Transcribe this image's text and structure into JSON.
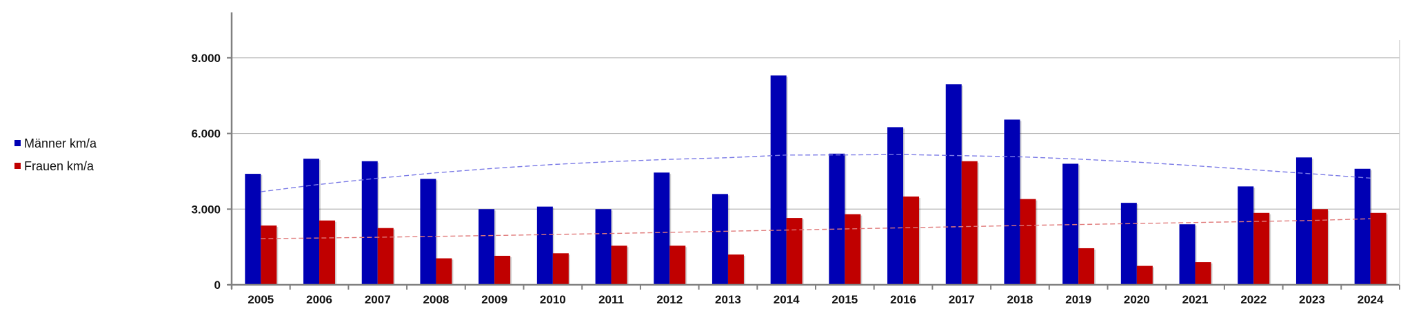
{
  "chart_data": {
    "type": "bar",
    "categories": [
      "2005",
      "2006",
      "2007",
      "2008",
      "2009",
      "2010",
      "2011",
      "2012",
      "2013",
      "2014",
      "2015",
      "2016",
      "2017",
      "2018",
      "2019",
      "2020",
      "2021",
      "2022",
      "2023",
      "2024"
    ],
    "series": [
      {
        "name": "Männer km/a",
        "color": "#0000b4",
        "values": [
          4400,
          5000,
          4900,
          4200,
          3000,
          3100,
          3000,
          4450,
          3600,
          8300,
          5200,
          6250,
          7950,
          6550,
          4800,
          3250,
          2400,
          3900,
          5050,
          4600
        ]
      },
      {
        "name": "Frauen km/a",
        "color": "#c00000",
        "values": [
          2350,
          2550,
          2250,
          1050,
          1150,
          1250,
          1550,
          1550,
          1200,
          2650,
          2800,
          3500,
          4900,
          3400,
          1450,
          750,
          900,
          2850,
          3000,
          2850
        ]
      }
    ],
    "trendlines": [
      {
        "series": "Männer km/a",
        "color": "#7a7ae6",
        "values": [
          3690,
          3980,
          4225,
          4440,
          4620,
          4770,
          4885,
          4975,
          5040,
          5145,
          5150,
          5165,
          5120,
          5075,
          4985,
          4865,
          4720,
          4560,
          4400,
          4230
        ]
      },
      {
        "series": "Frauen km/a",
        "color": "#e07a7a",
        "values": [
          1830,
          1855,
          1885,
          1920,
          1955,
          1995,
          2035,
          2080,
          2125,
          2170,
          2215,
          2260,
          2305,
          2350,
          2390,
          2430,
          2470,
          2510,
          2550,
          2620
        ]
      }
    ],
    "y_ticks": [
      "0",
      "3.000",
      "6.000",
      "9.000"
    ],
    "y_tick_values": [
      0,
      3000,
      6000,
      9000
    ],
    "ylim": [
      0,
      10800
    ],
    "grid": "horizontal",
    "legend_position": "left",
    "title": "",
    "xlabel": "",
    "ylabel": ""
  }
}
